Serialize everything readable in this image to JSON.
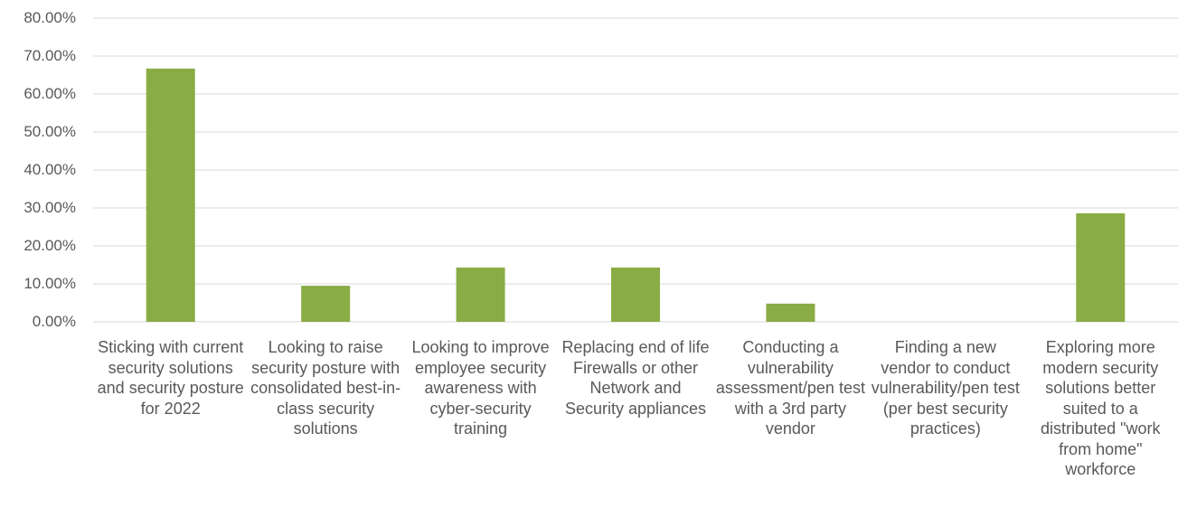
{
  "chart_data": {
    "type": "bar",
    "categories": [
      "Sticking with current security solutions and security posture for 2022",
      "Looking to raise security posture with consolidated best-in-class security solutions",
      "Looking to improve employee security awareness with cyber-security training",
      "Replacing end of life Firewalls or other Network and Security appliances",
      "Conducting a vulnerability assessment/pen test with a 3rd party vendor",
      "Finding a new vendor to conduct vulnerability/pen test (per best security practices)",
      "Exploring more modern security solutions better suited to a distributed \"work from home\" workforce"
    ],
    "values": [
      66.7,
      9.5,
      14.3,
      14.3,
      4.8,
      0,
      28.6
    ],
    "color": "#8aac45",
    "ylim": [
      0,
      80
    ],
    "yticks": [
      {
        "value": 0,
        "label": "0.00%"
      },
      {
        "value": 10,
        "label": "10.00%"
      },
      {
        "value": 20,
        "label": "20.00%"
      },
      {
        "value": 30,
        "label": "30.00%"
      },
      {
        "value": 40,
        "label": "40.00%"
      },
      {
        "value": 50,
        "label": "50.00%"
      },
      {
        "value": 60,
        "label": "60.00%"
      },
      {
        "value": 70,
        "label": "70.00%"
      },
      {
        "value": 80,
        "label": "80.00%"
      }
    ],
    "grid": true
  }
}
